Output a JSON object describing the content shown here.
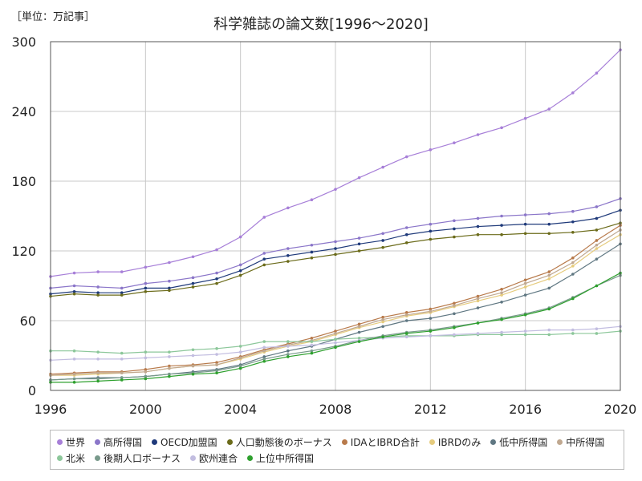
{
  "chart_data": {
    "type": "line",
    "title": "科学雑誌の論文数[1996～2020]",
    "unit_label": "［単位：万記事］",
    "xlim": [
      1996,
      2020
    ],
    "ylim": [
      0,
      300
    ],
    "x_ticks": [
      1996,
      2000,
      2004,
      2008,
      2012,
      2016,
      2020
    ],
    "y_ticks": [
      0,
      60,
      120,
      180,
      240,
      300
    ],
    "grid": true,
    "legend_position": "bottom",
    "x": [
      1996,
      1997,
      1998,
      1999,
      2000,
      2001,
      2002,
      2003,
      2004,
      2005,
      2006,
      2007,
      2008,
      2009,
      2010,
      2011,
      2012,
      2013,
      2014,
      2015,
      2016,
      2017,
      2018,
      2019,
      2020
    ],
    "series": [
      {
        "name": "世界",
        "color": "#a77fd8",
        "values": [
          98,
          101,
          102,
          102,
          106,
          110,
          115,
          121,
          132,
          149,
          157,
          164,
          173,
          183,
          192,
          201,
          207,
          213,
          220,
          226,
          234,
          242,
          256,
          273,
          293
        ]
      },
      {
        "name": "高所得国",
        "color": "#8b76c9",
        "values": [
          88,
          90,
          89,
          88,
          92,
          94,
          97,
          101,
          108,
          118,
          122,
          125,
          128,
          131,
          135,
          140,
          143,
          146,
          148,
          150,
          151,
          152,
          154,
          158,
          165
        ]
      },
      {
        "name": "OECD加盟国",
        "color": "#1f3a7a",
        "values": [
          83,
          85,
          84,
          84,
          88,
          88,
          92,
          96,
          103,
          113,
          116,
          119,
          122,
          126,
          129,
          134,
          137,
          139,
          141,
          142,
          143,
          143,
          145,
          148,
          155
        ]
      },
      {
        "name": "人口動態後のボーナス",
        "color": "#6b6b1a",
        "values": [
          81,
          83,
          82,
          82,
          85,
          86,
          89,
          92,
          99,
          108,
          111,
          114,
          117,
          120,
          123,
          127,
          130,
          132,
          134,
          134,
          135,
          135,
          136,
          138,
          144
        ]
      },
      {
        "name": "IDAとIBRD合計",
        "color": "#b87a4b",
        "values": [
          14,
          15,
          16,
          16,
          18,
          21,
          22,
          24,
          29,
          35,
          40,
          45,
          51,
          57,
          63,
          67,
          70,
          75,
          81,
          87,
          95,
          102,
          114,
          129,
          142
        ]
      },
      {
        "name": "IBRDのみ",
        "color": "#e6cc7e",
        "values": [
          13,
          13,
          14,
          15,
          16,
          19,
          21,
          22,
          27,
          33,
          38,
          42,
          48,
          54,
          59,
          64,
          67,
          72,
          77,
          82,
          89,
          96,
          107,
          122,
          134
        ]
      },
      {
        "name": "低中所得国",
        "color": "#5f7782",
        "values": [
          9,
          10,
          11,
          11,
          12,
          14,
          16,
          18,
          22,
          29,
          34,
          38,
          44,
          50,
          55,
          60,
          62,
          66,
          71,
          76,
          82,
          88,
          100,
          113,
          126
        ]
      },
      {
        "name": "中所得国",
        "color": "#c0a890",
        "values": [
          13,
          14,
          15,
          15,
          16,
          19,
          21,
          22,
          28,
          34,
          39,
          43,
          49,
          55,
          61,
          65,
          68,
          73,
          79,
          84,
          92,
          99,
          110,
          125,
          138
        ]
      },
      {
        "name": "北米",
        "color": "#8cc79a",
        "values": [
          34,
          34,
          33,
          32,
          33,
          33,
          35,
          36,
          38,
          42,
          42,
          42,
          44,
          45,
          46,
          47,
          47,
          47,
          48,
          48,
          48,
          48,
          49,
          49,
          51
        ]
      },
      {
        "name": "後期人口ボーナス",
        "color": "#78998b",
        "values": [
          9,
          10,
          10,
          11,
          12,
          14,
          15,
          17,
          21,
          27,
          31,
          34,
          38,
          43,
          47,
          50,
          52,
          55,
          58,
          62,
          66,
          71,
          80,
          90,
          99
        ]
      },
      {
        "name": "欧州連合",
        "color": "#c2bde0",
        "values": [
          26,
          27,
          27,
          27,
          28,
          29,
          30,
          31,
          33,
          37,
          38,
          39,
          41,
          43,
          45,
          46,
          47,
          48,
          49,
          50,
          51,
          52,
          52,
          53,
          55
        ]
      },
      {
        "name": "上位中所得国",
        "color": "#2ea02e",
        "values": [
          7,
          7,
          8,
          9,
          10,
          12,
          14,
          15,
          19,
          25,
          29,
          32,
          37,
          42,
          46,
          49,
          51,
          54,
          58,
          61,
          65,
          70,
          79,
          90,
          101
        ]
      }
    ]
  }
}
